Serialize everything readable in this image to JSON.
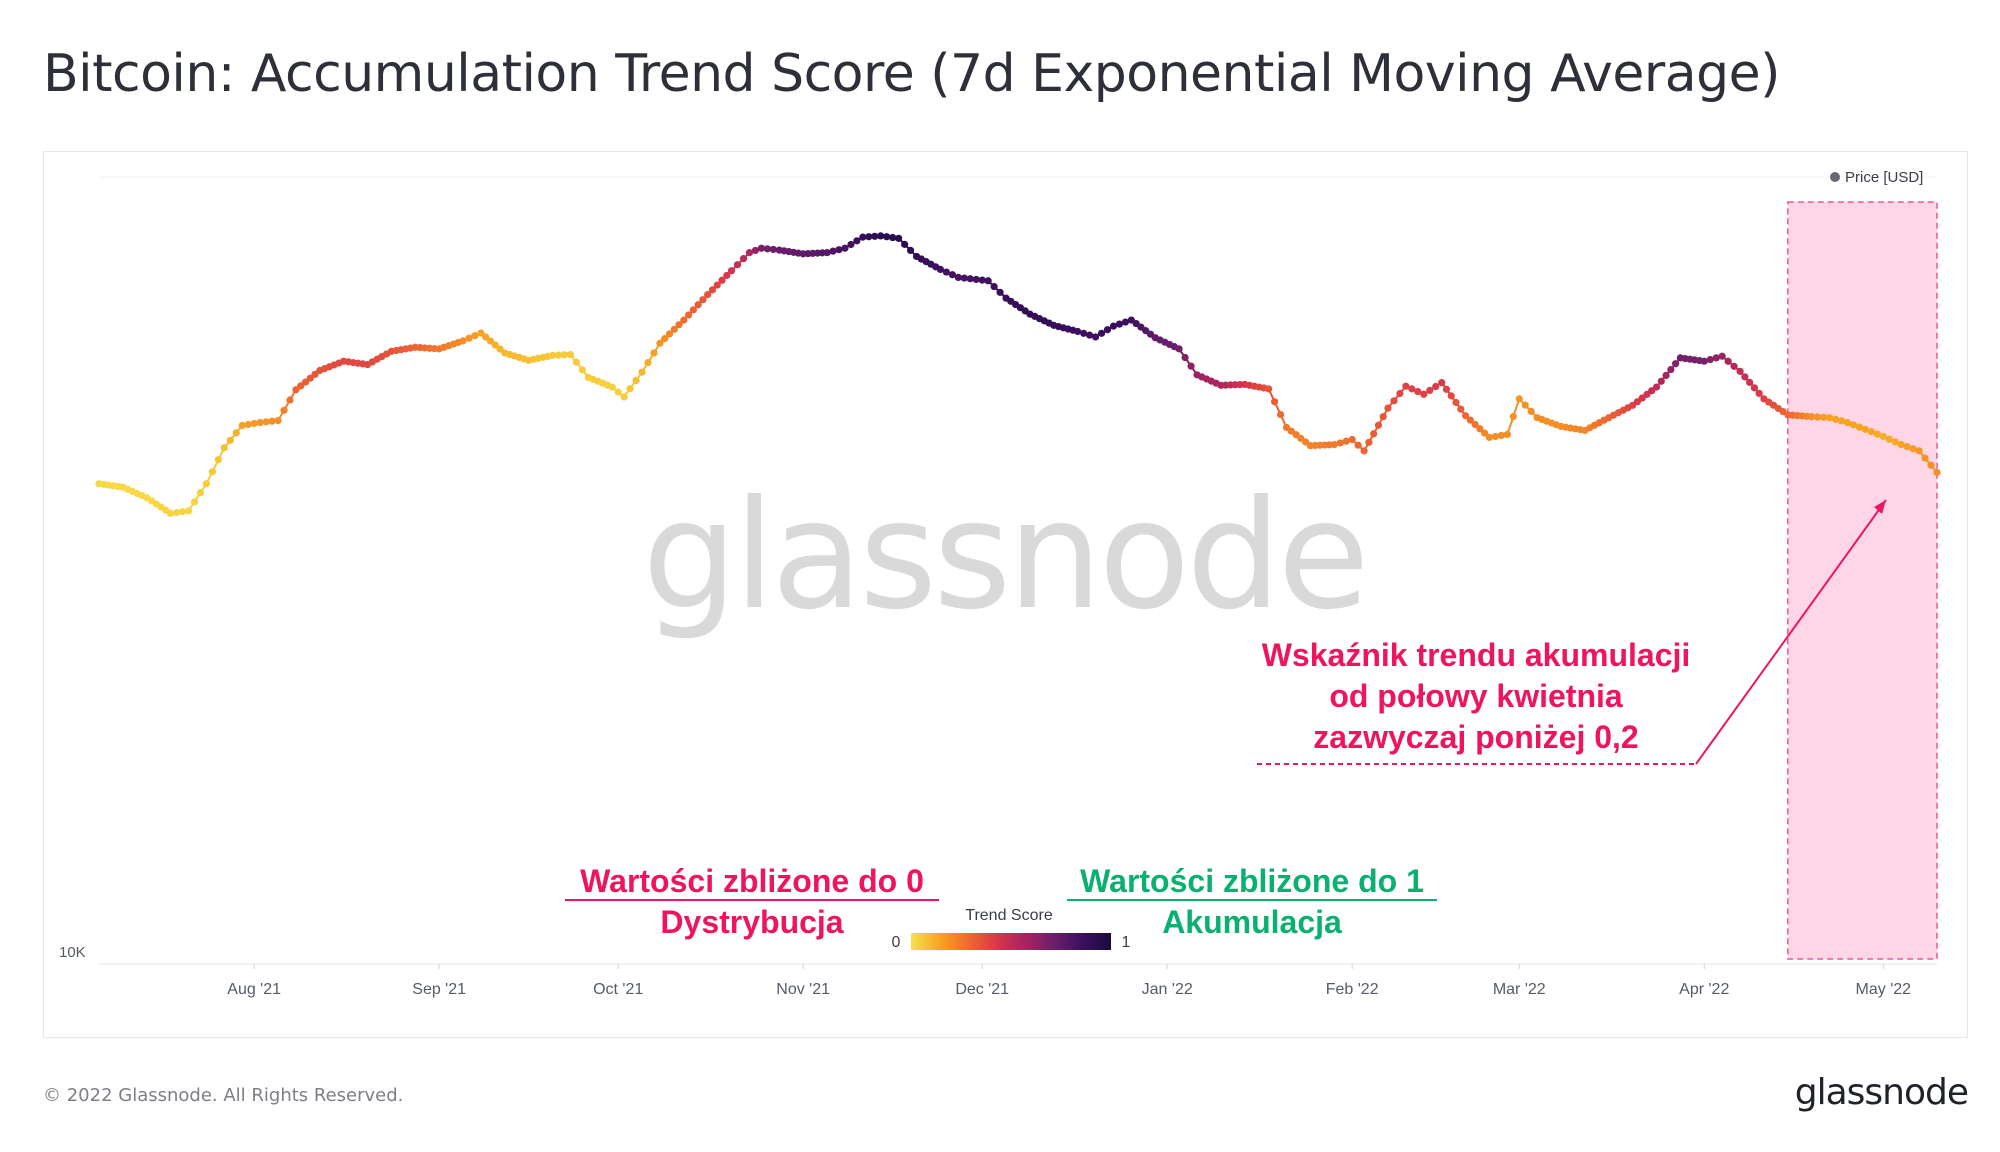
{
  "title": "Bitcoin: Accumulation Trend Score (7d Exponential Moving Average)",
  "footer": {
    "copyright": "© 2022 Glassnode. All Rights Reserved.",
    "logo": "glassnode"
  },
  "watermark": "glassnode",
  "colors": {
    "gradient": [
      "#f7e04a",
      "#f6a623",
      "#ee6a2f",
      "#d9374a",
      "#a8245f",
      "#6b1f6b",
      "#3b0f5f",
      "#1a0a3a"
    ],
    "pink_annotation": "#ee1460",
    "green_annotation": "#0ab070",
    "highlight_fill": "#ffd6e6",
    "highlight_border": "#f0559a",
    "grid": "#eef0f3",
    "tick_text": "#555b65"
  },
  "chart_data": {
    "type": "scatter",
    "encoding": "price line colored by Trend Score (0 = yellow, 1 = dark purple)",
    "legend": {
      "label": "Price [USD]",
      "position": "top-right"
    },
    "colorbar": {
      "title": "Trend Score",
      "min_label": "0",
      "max_label": "1"
    },
    "y_axis": {
      "scale": "log",
      "visible_tick": "10K",
      "range": [
        10000,
        75000
      ]
    },
    "x_ticks": [
      "Aug '21",
      "Sep '21",
      "Oct '21",
      "Nov '21",
      "Dec '21",
      "Jan '22",
      "Feb '22",
      "Mar '22",
      "Apr '22",
      "May '22"
    ],
    "x_range": [
      "2021-07-06",
      "2022-05-10"
    ],
    "grid": "horizontal",
    "series": [
      {
        "points": [
          [
            "2021-07-06",
            34200,
            0.02
          ],
          [
            "2021-07-10",
            33900,
            0.02
          ],
          [
            "2021-07-14",
            33000,
            0.02
          ],
          [
            "2021-07-18",
            31700,
            0.03
          ],
          [
            "2021-07-21",
            31900,
            0.03
          ],
          [
            "2021-07-24",
            34200,
            0.05
          ],
          [
            "2021-07-27",
            37500,
            0.08
          ],
          [
            "2021-07-30",
            39700,
            0.15
          ],
          [
            "2021-08-02",
            40000,
            0.18
          ],
          [
            "2021-08-05",
            40200,
            0.2
          ],
          [
            "2021-08-08",
            43500,
            0.3
          ],
          [
            "2021-08-12",
            45700,
            0.35
          ],
          [
            "2021-08-16",
            46800,
            0.38
          ],
          [
            "2021-08-20",
            46400,
            0.38
          ],
          [
            "2021-08-24",
            48000,
            0.35
          ],
          [
            "2021-08-28",
            48500,
            0.3
          ],
          [
            "2021-09-01",
            48300,
            0.25
          ],
          [
            "2021-09-05",
            49300,
            0.2
          ],
          [
            "2021-09-08",
            50300,
            0.15
          ],
          [
            "2021-09-12",
            47800,
            0.1
          ],
          [
            "2021-09-16",
            46900,
            0.08
          ],
          [
            "2021-09-20",
            47500,
            0.06
          ],
          [
            "2021-09-23",
            47600,
            0.05
          ],
          [
            "2021-09-26",
            44900,
            0.05
          ],
          [
            "2021-09-30",
            43800,
            0.04
          ],
          [
            "2021-10-02",
            42700,
            0.05
          ],
          [
            "2021-10-05",
            45500,
            0.1
          ],
          [
            "2021-10-08",
            49000,
            0.18
          ],
          [
            "2021-10-12",
            52000,
            0.28
          ],
          [
            "2021-10-16",
            55500,
            0.35
          ],
          [
            "2021-10-20",
            59000,
            0.45
          ],
          [
            "2021-10-23",
            61800,
            0.55
          ],
          [
            "2021-10-25",
            62500,
            0.68
          ],
          [
            "2021-10-28",
            62200,
            0.72
          ],
          [
            "2021-11-01",
            61600,
            0.75
          ],
          [
            "2021-11-05",
            61800,
            0.78
          ],
          [
            "2021-11-08",
            62500,
            0.82
          ],
          [
            "2021-11-11",
            64300,
            0.88
          ],
          [
            "2021-11-14",
            64500,
            0.92
          ],
          [
            "2021-11-17",
            64100,
            0.93
          ],
          [
            "2021-11-20",
            61200,
            0.9
          ],
          [
            "2021-11-24",
            59200,
            0.85
          ],
          [
            "2021-11-27",
            58000,
            0.82
          ],
          [
            "2021-11-29",
            57800,
            0.82
          ],
          [
            "2021-12-02",
            57500,
            0.85
          ],
          [
            "2021-12-05",
            55000,
            0.88
          ],
          [
            "2021-12-09",
            52800,
            0.9
          ],
          [
            "2021-12-13",
            51300,
            0.88
          ],
          [
            "2021-12-17",
            50500,
            0.85
          ],
          [
            "2021-12-20",
            49800,
            0.85
          ],
          [
            "2021-12-23",
            51200,
            0.88
          ],
          [
            "2021-12-26",
            52000,
            0.85
          ],
          [
            "2021-12-30",
            49700,
            0.75
          ],
          [
            "2022-01-03",
            48300,
            0.7
          ],
          [
            "2022-01-06",
            45200,
            0.6
          ],
          [
            "2022-01-10",
            44000,
            0.55
          ],
          [
            "2022-01-14",
            44100,
            0.45
          ],
          [
            "2022-01-18",
            43600,
            0.35
          ],
          [
            "2022-01-21",
            39500,
            0.25
          ],
          [
            "2022-01-25",
            37700,
            0.22
          ],
          [
            "2022-01-29",
            37800,
            0.25
          ],
          [
            "2022-02-01",
            38300,
            0.28
          ],
          [
            "2022-02-03",
            37200,
            0.3
          ],
          [
            "2022-02-07",
            41500,
            0.35
          ],
          [
            "2022-02-10",
            43900,
            0.4
          ],
          [
            "2022-02-13",
            43000,
            0.4
          ],
          [
            "2022-02-16",
            44300,
            0.42
          ],
          [
            "2022-02-20",
            40700,
            0.3
          ],
          [
            "2022-02-24",
            38500,
            0.2
          ],
          [
            "2022-02-27",
            38800,
            0.2
          ],
          [
            "2022-03-01",
            42500,
            0.18
          ],
          [
            "2022-03-04",
            40500,
            0.2
          ],
          [
            "2022-03-08",
            39600,
            0.2
          ],
          [
            "2022-03-12",
            39200,
            0.22
          ],
          [
            "2022-03-16",
            40500,
            0.3
          ],
          [
            "2022-03-20",
            41800,
            0.4
          ],
          [
            "2022-03-24",
            43800,
            0.5
          ],
          [
            "2022-03-28",
            47200,
            0.7
          ],
          [
            "2022-04-01",
            46800,
            0.68
          ],
          [
            "2022-04-04",
            47400,
            0.6
          ],
          [
            "2022-04-07",
            45600,
            0.5
          ],
          [
            "2022-04-11",
            42500,
            0.4
          ],
          [
            "2022-04-15",
            40800,
            0.3
          ],
          [
            "2022-04-19",
            40600,
            0.2
          ],
          [
            "2022-04-22",
            40500,
            0.15
          ],
          [
            "2022-04-25",
            40000,
            0.15
          ],
          [
            "2022-04-28",
            39300,
            0.15
          ],
          [
            "2022-05-01",
            38600,
            0.12
          ],
          [
            "2022-05-04",
            37800,
            0.15
          ],
          [
            "2022-05-07",
            37200,
            0.18
          ],
          [
            "2022-05-10",
            35200,
            0.2
          ]
        ]
      }
    ],
    "highlight_region": {
      "from": "2022-04-15",
      "to": "2022-05-10"
    }
  },
  "annotations": {
    "pink_callout": [
      "Wskaźnik trendu akumulacji",
      "od połowy kwietnia",
      "zazwyczaj poniżej 0,2"
    ],
    "left_label": {
      "line1": "Wartości zbliżone do 0",
      "line2": "Dystrybucja"
    },
    "right_label": {
      "line1": "Wartości zbliżone do 1",
      "line2": "Akumulacja"
    }
  }
}
